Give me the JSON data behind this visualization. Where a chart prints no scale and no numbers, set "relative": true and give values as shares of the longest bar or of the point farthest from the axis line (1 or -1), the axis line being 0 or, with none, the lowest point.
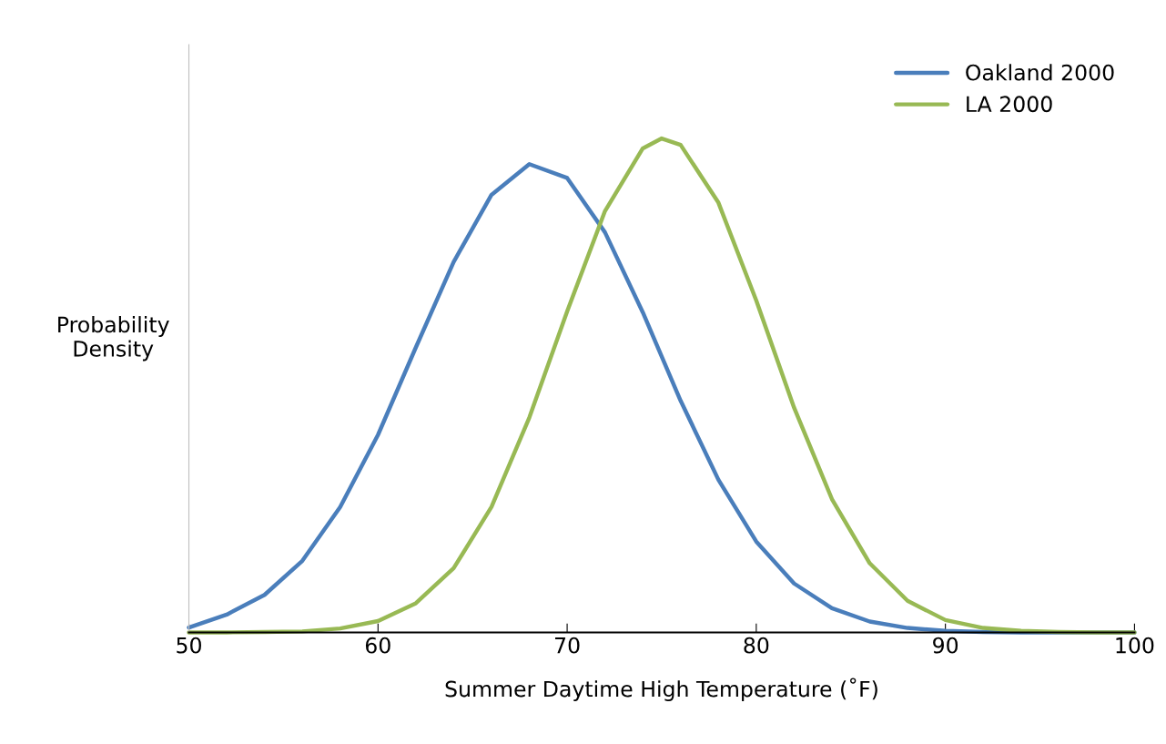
{
  "chart_data": {
    "type": "line",
    "relative": true,
    "xlabel": "Summer Daytime High Temperature (˚F)",
    "ylabel": "Probability\nDensity",
    "xlim": [
      50,
      100
    ],
    "xticks": [
      50,
      60,
      70,
      80,
      90,
      100
    ],
    "legend": "top right",
    "grid": false,
    "marker": "none",
    "line_style": "solid",
    "series": [
      {
        "name": "Oakland 2000",
        "color": "#4a7ebb",
        "x": [
          50,
          52,
          54,
          56,
          58,
          60,
          62,
          64,
          66,
          68,
          70,
          72,
          74,
          76,
          78,
          80,
          82,
          84,
          86,
          88,
          90,
          92,
          94,
          96,
          98,
          100
        ],
        "values": [
          0.01,
          0.036,
          0.076,
          0.145,
          0.254,
          0.4,
          0.577,
          0.75,
          0.886,
          0.948,
          0.92,
          0.81,
          0.648,
          0.469,
          0.309,
          0.184,
          0.099,
          0.049,
          0.022,
          0.009,
          0.003,
          0.001,
          0,
          0,
          0,
          0
        ]
      },
      {
        "name": "LA 2000",
        "color": "#98b954",
        "x": [
          50,
          52,
          54,
          56,
          58,
          60,
          62,
          64,
          66,
          68,
          70,
          72,
          74,
          75,
          76,
          78,
          80,
          82,
          84,
          86,
          88,
          90,
          92,
          94,
          96,
          98,
          100
        ],
        "values": [
          0,
          0,
          0.001,
          0.002,
          0.008,
          0.023,
          0.059,
          0.13,
          0.254,
          0.435,
          0.65,
          0.853,
          0.98,
          1,
          0.987,
          0.87,
          0.672,
          0.455,
          0.27,
          0.14,
          0.064,
          0.025,
          0.009,
          0.003,
          0.001,
          0,
          0
        ]
      }
    ]
  }
}
